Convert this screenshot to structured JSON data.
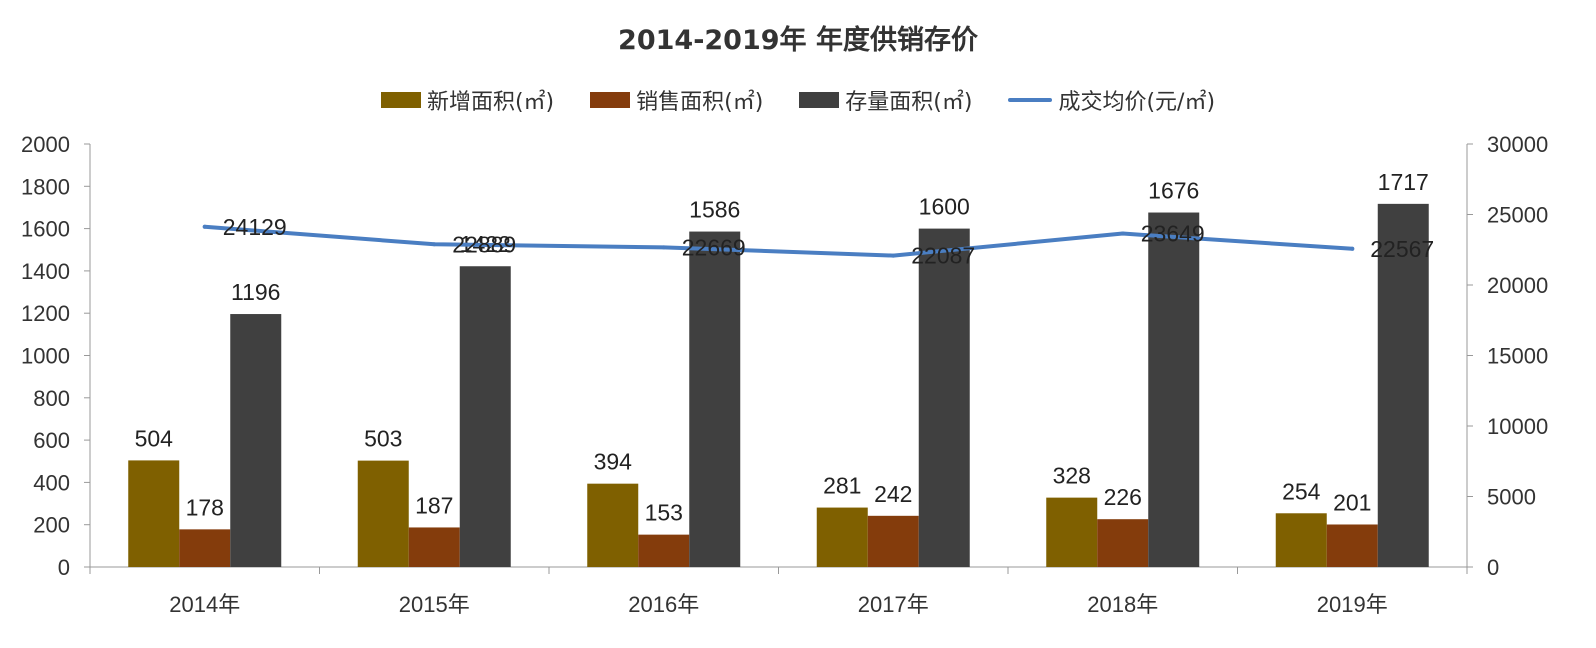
{
  "chart_data": {
    "type": "bar",
    "title": "2014-2019年 年度供销存价",
    "categories": [
      "2014年",
      "2015年",
      "2016年",
      "2017年",
      "2018年",
      "2019年"
    ],
    "series": [
      {
        "name": "新增面积(㎡)",
        "type": "bar",
        "axis": "left",
        "color": "#7F6000",
        "values": [
          504,
          503,
          394,
          281,
          328,
          254
        ]
      },
      {
        "name": "销售面积(㎡)",
        "type": "bar",
        "axis": "left",
        "color": "#843C0C",
        "values": [
          178,
          187,
          153,
          242,
          226,
          201
        ]
      },
      {
        "name": "存量面积(㎡)",
        "type": "bar",
        "axis": "left",
        "color": "#404040",
        "values": [
          1196,
          1422,
          1586,
          1600,
          1676,
          1717
        ]
      },
      {
        "name": "成交均价(元/㎡)",
        "type": "line",
        "axis": "right",
        "color": "#4A7EC2",
        "values": [
          24129,
          22889,
          22669,
          22087,
          23649,
          22567
        ]
      }
    ],
    "ylim_left": [
      0,
      2000
    ],
    "yticks_left": [
      0,
      200,
      400,
      600,
      800,
      1000,
      1200,
      1400,
      1600,
      1800,
      2000
    ],
    "ylim_right": [
      0,
      30000
    ],
    "yticks_right": [
      0,
      5000,
      10000,
      15000,
      20000,
      25000,
      30000
    ],
    "grid": false,
    "legend_position": "top"
  }
}
